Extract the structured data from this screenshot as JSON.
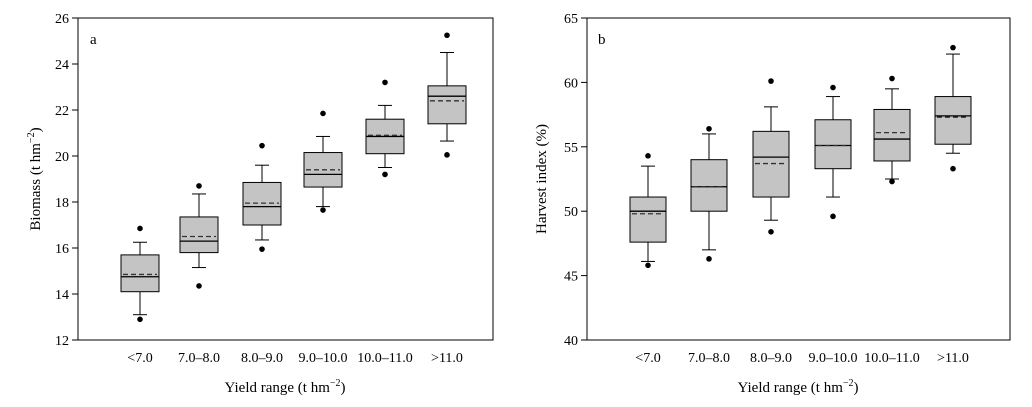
{
  "chart_data": [
    {
      "type": "box",
      "panel_label": "a",
      "xlabel": "Yield range (t hm",
      "xlabel_sup": "−2",
      "xlabel_end": ")",
      "ylabel": "Biomass (t hm",
      "ylabel_sup": "−2",
      "ylabel_end": ")",
      "ylim": [
        12,
        26
      ],
      "yticks": [
        "12",
        "14",
        "16",
        "18",
        "20",
        "22",
        "24",
        "26"
      ],
      "categories": [
        "<7.0",
        "7.0–8.0",
        "8.0–9.0",
        "9.0–10.0",
        "10.0–11.0",
        ">11.0"
      ],
      "boxes": [
        {
          "whisker_low": 13.1,
          "q1": 14.1,
          "median": 14.75,
          "mean": 14.85,
          "q3": 15.7,
          "whisker_high": 16.25,
          "outliers": [
            12.9,
            16.85
          ]
        },
        {
          "whisker_low": 15.15,
          "q1": 15.8,
          "median": 16.3,
          "mean": 16.5,
          "q3": 17.35,
          "whisker_high": 18.35,
          "outliers": [
            14.35,
            18.7
          ]
        },
        {
          "whisker_low": 16.35,
          "q1": 17.0,
          "median": 17.8,
          "mean": 17.95,
          "q3": 18.85,
          "whisker_high": 19.6,
          "outliers": [
            15.95,
            20.45
          ]
        },
        {
          "whisker_low": 17.8,
          "q1": 18.65,
          "median": 19.2,
          "mean": 19.4,
          "q3": 20.15,
          "whisker_high": 20.85,
          "outliers": [
            17.65,
            21.85
          ]
        },
        {
          "whisker_low": 19.5,
          "q1": 20.1,
          "median": 20.85,
          "mean": 20.9,
          "q3": 21.6,
          "whisker_high": 22.2,
          "outliers": [
            19.2,
            23.2
          ]
        },
        {
          "whisker_low": 20.65,
          "q1": 21.4,
          "median": 22.6,
          "mean": 22.4,
          "q3": 23.05,
          "whisker_high": 24.5,
          "outliers": [
            20.05,
            25.25
          ]
        }
      ]
    },
    {
      "type": "box",
      "panel_label": "b",
      "xlabel": "Yield range (t hm",
      "xlabel_sup": "−2",
      "xlabel_end": ")",
      "ylabel": "Harvest index (%)",
      "ylabel_sup": "",
      "ylabel_end": "",
      "ylim": [
        40,
        65
      ],
      "yticks": [
        "40",
        "45",
        "50",
        "55",
        "60",
        "65"
      ],
      "categories": [
        "<7.0",
        "7.0–8.0",
        "8.0–9.0",
        "9.0–10.0",
        "10.0–11.0",
        ">11.0"
      ],
      "boxes": [
        {
          "whisker_low": 46.1,
          "q1": 47.6,
          "median": 50.0,
          "mean": 49.8,
          "q3": 51.1,
          "whisker_high": 53.5,
          "outliers": [
            45.8,
            54.3
          ]
        },
        {
          "whisker_low": 47.0,
          "q1": 50.0,
          "median": 51.9,
          "mean": 51.9,
          "q3": 54.0,
          "whisker_high": 56.0,
          "outliers": [
            46.3,
            56.4
          ]
        },
        {
          "whisker_low": 49.3,
          "q1": 51.1,
          "median": 54.2,
          "mean": 53.7,
          "q3": 56.2,
          "whisker_high": 58.1,
          "outliers": [
            48.4,
            60.1
          ]
        },
        {
          "whisker_low": 51.1,
          "q1": 53.3,
          "median": 55.1,
          "mean": 55.1,
          "q3": 57.1,
          "whisker_high": 58.9,
          "outliers": [
            49.6,
            59.6
          ]
        },
        {
          "whisker_low": 52.5,
          "q1": 53.9,
          "median": 55.6,
          "mean": 56.1,
          "q3": 57.9,
          "whisker_high": 59.5,
          "outliers": [
            52.3,
            60.3
          ]
        },
        {
          "whisker_low": 54.5,
          "q1": 55.2,
          "median": 57.4,
          "mean": 57.3,
          "q3": 58.9,
          "whisker_high": 62.2,
          "outliers": [
            53.3,
            62.7
          ]
        }
      ]
    }
  ]
}
